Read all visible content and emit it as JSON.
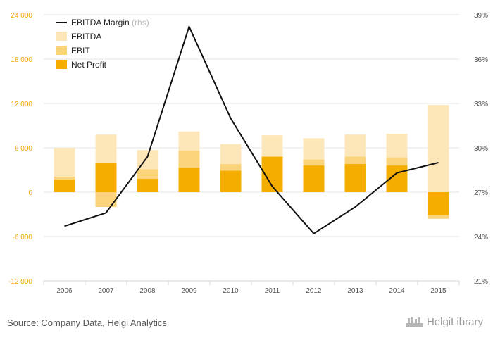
{
  "chart_data": {
    "type": "bar",
    "categories": [
      "2006",
      "2007",
      "2008",
      "2009",
      "2010",
      "2011",
      "2012",
      "2013",
      "2014",
      "2015"
    ],
    "series": [
      {
        "name": "EBITDA",
        "kind": "bar",
        "axis": "left",
        "color": "#fde7b8",
        "values": [
          6000,
          7800,
          5700,
          8200,
          6500,
          7700,
          7300,
          7800,
          7900,
          11800
        ]
      },
      {
        "name": "EBIT",
        "kind": "bar",
        "axis": "left",
        "color": "#fbd37a",
        "values": [
          2100,
          -2000,
          3100,
          5600,
          3800,
          4800,
          4400,
          4800,
          4700,
          -3600
        ]
      },
      {
        "name": "Net Profit",
        "kind": "bar",
        "axis": "left",
        "color": "#f5ad00",
        "values": [
          1700,
          3900,
          1800,
          3300,
          2900,
          4800,
          3600,
          3800,
          3600,
          -3100
        ]
      },
      {
        "name": "EBITDA Margin",
        "name_suffix": "(rhs)",
        "kind": "line",
        "axis": "right",
        "color": "#111111",
        "values": [
          24.7,
          25.6,
          29.4,
          38.2,
          32.0,
          27.4,
          24.2,
          26.0,
          28.3,
          29.0
        ]
      }
    ],
    "y_left": {
      "ticks": [
        -12000,
        -6000,
        0,
        6000,
        12000,
        18000,
        24000
      ],
      "tick_labels": [
        "-12 000",
        "-6 000",
        "0",
        "6 000",
        "12 000",
        "18 000",
        "24 000"
      ],
      "range": [
        -12000,
        24000
      ],
      "color": "#f0a800"
    },
    "y_right": {
      "ticks": [
        21,
        24,
        27,
        30,
        33,
        36,
        39
      ],
      "tick_labels": [
        "21%",
        "24%",
        "27%",
        "30%",
        "33%",
        "36%",
        "39%"
      ],
      "range": [
        21,
        39
      ]
    },
    "grid": true,
    "legend_position": "top-left"
  },
  "source": "Source: Company Data, Helgi Analytics",
  "brand": "HelgiLibrary"
}
